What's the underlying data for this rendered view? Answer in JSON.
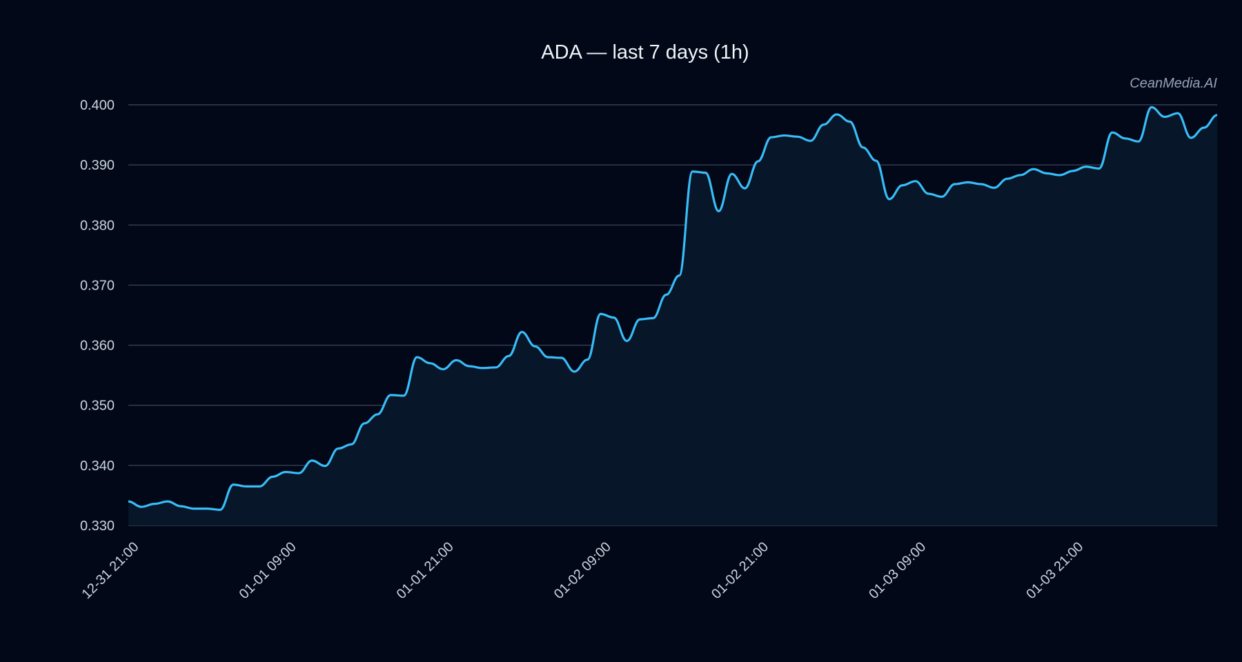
{
  "chart_data": {
    "type": "line",
    "title": "ADA — last 7 days (1h)",
    "watermark": "CeanMedia.AI",
    "xlabel": "",
    "ylabel": "",
    "ylim": [
      0.33,
      0.4
    ],
    "y_ticks": [
      "0.330",
      "0.340",
      "0.350",
      "0.360",
      "0.370",
      "0.380",
      "0.390",
      "0.400"
    ],
    "x_ticks": [
      {
        "label": "12-31 21:00",
        "t": 0
      },
      {
        "label": "01-01 09:00",
        "t": 12
      },
      {
        "label": "01-01 21:00",
        "t": 24
      },
      {
        "label": "01-02 09:00",
        "t": 36
      },
      {
        "label": "01-02 21:00",
        "t": 48
      },
      {
        "label": "01-03 09:00",
        "t": 60
      },
      {
        "label": "01-03 21:00",
        "t": 72
      }
    ],
    "x_step": "1h",
    "grid": true,
    "fill_under_line": true,
    "colors": {
      "background": "#020817",
      "line": "#38bdf8",
      "fill": "#071629",
      "grid": "#334155",
      "text": "#cbd5e1"
    },
    "series": [
      {
        "values": [
          0.334,
          0.3331,
          0.3336,
          0.334,
          0.3332,
          0.3328,
          0.3328,
          0.3326,
          0.3368,
          0.3365,
          0.3365,
          0.3381,
          0.3389,
          0.3387,
          0.3408,
          0.3399,
          0.3428,
          0.3435,
          0.347,
          0.3485,
          0.3517,
          0.3516,
          0.358,
          0.357,
          0.356,
          0.3575,
          0.3565,
          0.3562,
          0.3563,
          0.3582,
          0.3622,
          0.3598,
          0.358,
          0.3579,
          0.3556,
          0.3576,
          0.3652,
          0.3646,
          0.3607,
          0.3643,
          0.3645,
          0.3684,
          0.3716,
          0.3889,
          0.3887,
          0.3823,
          0.3885,
          0.3861,
          0.3906,
          0.3946,
          0.3949,
          0.3947,
          0.394,
          0.3967,
          0.3984,
          0.3972,
          0.3929,
          0.3907,
          0.3843,
          0.3866,
          0.3873,
          0.3852,
          0.3847,
          0.3868,
          0.3871,
          0.3868,
          0.3862,
          0.3877,
          0.3883,
          0.3893,
          0.3886,
          0.3883,
          0.389,
          0.3897,
          0.3894,
          0.3954,
          0.3944,
          0.3939,
          0.3996,
          0.398,
          0.3986,
          0.3945,
          0.3962,
          0.3983
        ]
      }
    ]
  }
}
